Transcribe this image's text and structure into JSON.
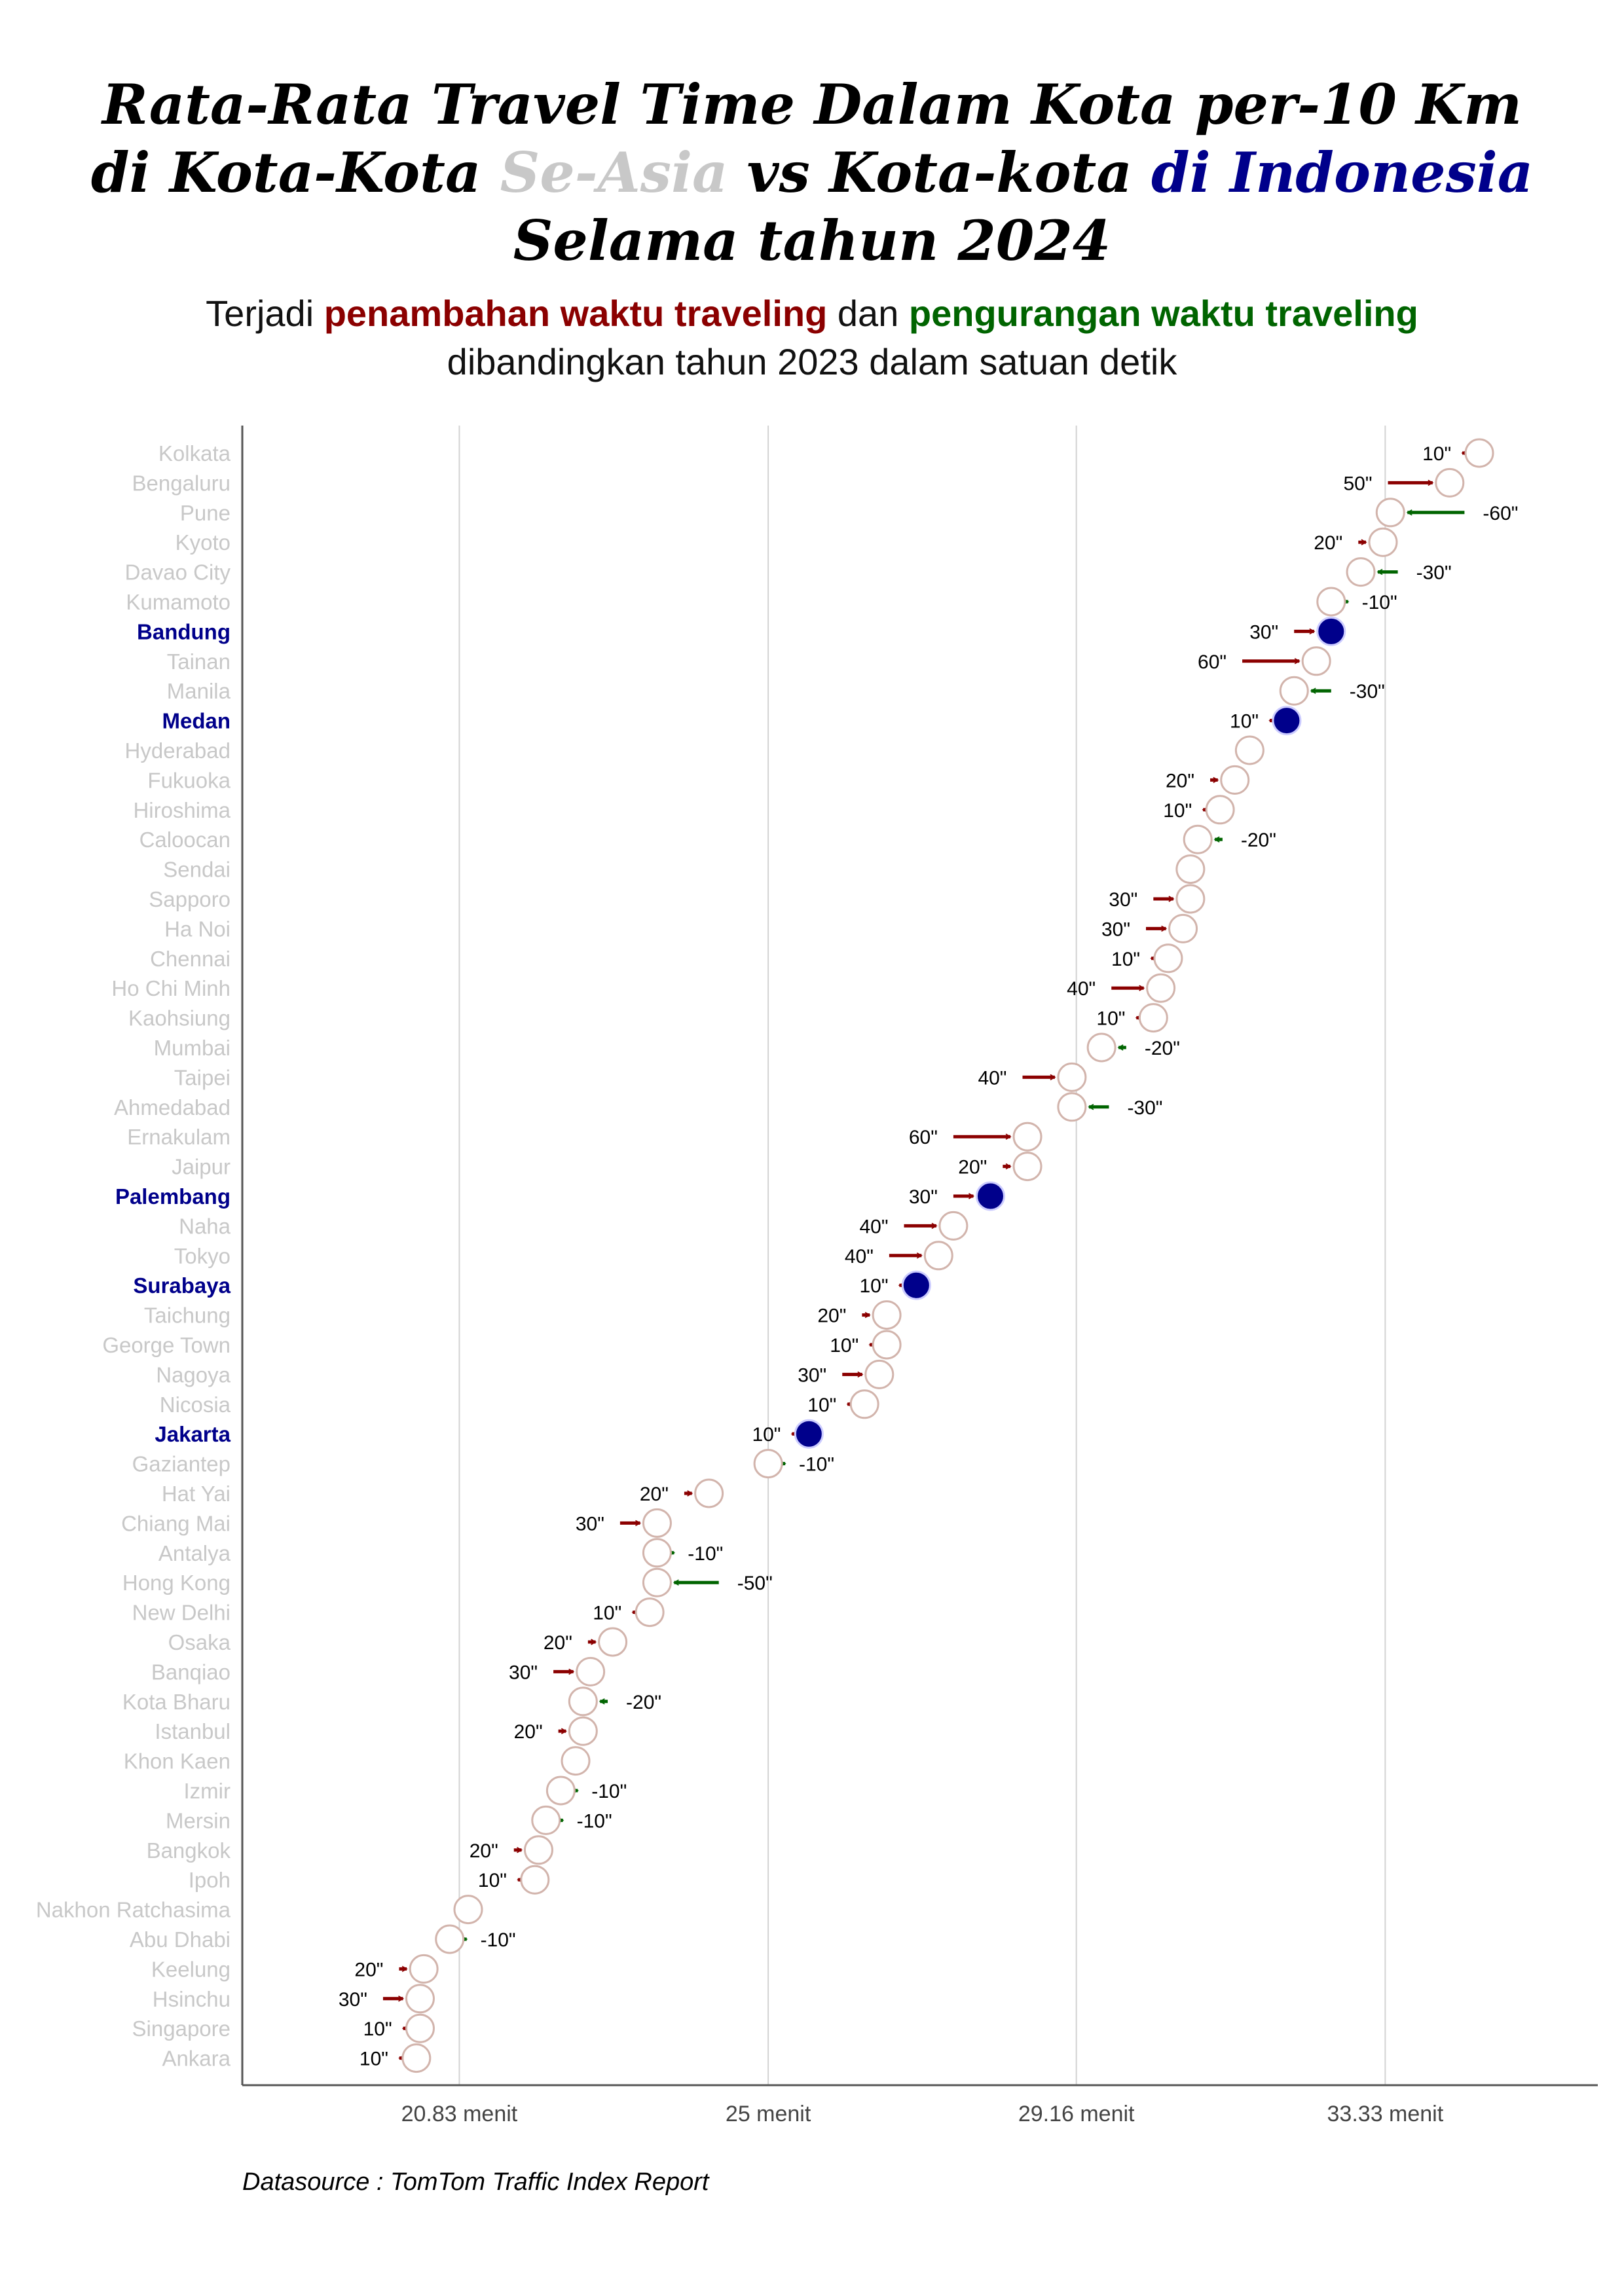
{
  "title": {
    "line1": "Rata-Rata Travel Time Dalam Kota per-10 Km",
    "line2_a": "di Kota-Kota ",
    "line2_b": "Se-Asia",
    "line2_c": " vs Kota-kota ",
    "line2_d": "di Indonesia",
    "line3": "Selama tahun 2024"
  },
  "subtitle": {
    "a": "Terjadi ",
    "b": "penambahan waktu traveling",
    "c": " dan ",
    "d": "pengurangan waktu traveling",
    "line2": "dibandingkan tahun 2023 dalam satuan detik"
  },
  "source": "Datasource : TomTom Traffic Index Report",
  "colors": {
    "increase": "#8b0000",
    "decrease": "#006400",
    "indonesia": "#00008b",
    "asia_label": "#c8c8c8",
    "marker_edge": "#d2b4ac",
    "grid": "#d3d3d3"
  },
  "chart_data": {
    "type": "dumbbell-arrow",
    "x_unit": "minutes",
    "xlim": [
      17.9,
      36.2
    ],
    "x_ticks": [
      {
        "value": 20.83,
        "label": "20.83 menit"
      },
      {
        "value": 25,
        "label": "25 menit"
      },
      {
        "value": 29.16,
        "label": "29.16 menit"
      },
      {
        "value": 33.33,
        "label": "33.33 menit"
      }
    ],
    "grid_x": true,
    "cities": [
      {
        "name": "Kolkata",
        "value_2024": 34.6,
        "change_sec": 10,
        "label": "10\"",
        "indonesia": false
      },
      {
        "name": "Bengaluru",
        "value_2024": 34.2,
        "change_sec": 50,
        "label": "50\"",
        "indonesia": false
      },
      {
        "name": "Pune",
        "value_2024": 33.4,
        "change_sec": -60,
        "label": "-60\"",
        "indonesia": false
      },
      {
        "name": "Kyoto",
        "value_2024": 33.3,
        "change_sec": 20,
        "label": "20\"",
        "indonesia": false
      },
      {
        "name": "Davao City",
        "value_2024": 33.0,
        "change_sec": -30,
        "label": "-30\"",
        "indonesia": false
      },
      {
        "name": "Kumamoto",
        "value_2024": 32.6,
        "change_sec": -10,
        "label": "-10\"",
        "indonesia": false
      },
      {
        "name": "Bandung",
        "value_2024": 32.6,
        "change_sec": 30,
        "label": "30\"",
        "indonesia": true
      },
      {
        "name": "Tainan",
        "value_2024": 32.4,
        "change_sec": 60,
        "label": "60\"",
        "indonesia": false
      },
      {
        "name": "Manila",
        "value_2024": 32.1,
        "change_sec": -30,
        "label": "-30\"",
        "indonesia": false
      },
      {
        "name": "Medan",
        "value_2024": 32.0,
        "change_sec": 10,
        "label": "10\"",
        "indonesia": true
      },
      {
        "name": "Hyderabad",
        "value_2024": 31.5,
        "change_sec": 0,
        "label": "",
        "indonesia": false
      },
      {
        "name": "Fukuoka",
        "value_2024": 31.3,
        "change_sec": 20,
        "label": "20\"",
        "indonesia": false
      },
      {
        "name": "Hiroshima",
        "value_2024": 31.1,
        "change_sec": 10,
        "label": "10\"",
        "indonesia": false
      },
      {
        "name": "Caloocan",
        "value_2024": 30.8,
        "change_sec": -20,
        "label": "-20\"",
        "indonesia": false
      },
      {
        "name": "Sendai",
        "value_2024": 30.7,
        "change_sec": 0,
        "label": "",
        "indonesia": false
      },
      {
        "name": "Sapporo",
        "value_2024": 30.7,
        "change_sec": 30,
        "label": "30\"",
        "indonesia": false
      },
      {
        "name": "Ha Noi",
        "value_2024": 30.6,
        "change_sec": 30,
        "label": "30\"",
        "indonesia": false
      },
      {
        "name": "Chennai",
        "value_2024": 30.4,
        "change_sec": 10,
        "label": "10\"",
        "indonesia": false
      },
      {
        "name": "Ho Chi Minh",
        "value_2024": 30.3,
        "change_sec": 40,
        "label": "40\"",
        "indonesia": false
      },
      {
        "name": "Kaohsiung",
        "value_2024": 30.2,
        "change_sec": 10,
        "label": "10\"",
        "indonesia": false
      },
      {
        "name": "Mumbai",
        "value_2024": 29.5,
        "change_sec": -20,
        "label": "-20\"",
        "indonesia": false
      },
      {
        "name": "Taipei",
        "value_2024": 29.1,
        "change_sec": 40,
        "label": "40\"",
        "indonesia": false
      },
      {
        "name": "Ahmedabad",
        "value_2024": 29.1,
        "change_sec": -30,
        "label": "-30\"",
        "indonesia": false
      },
      {
        "name": "Ernakulam",
        "value_2024": 28.5,
        "change_sec": 60,
        "label": "60\"",
        "indonesia": false
      },
      {
        "name": "Jaipur",
        "value_2024": 28.5,
        "change_sec": 20,
        "label": "20\"",
        "indonesia": false
      },
      {
        "name": "Palembang",
        "value_2024": 28.0,
        "change_sec": 30,
        "label": "30\"",
        "indonesia": true
      },
      {
        "name": "Naha",
        "value_2024": 27.5,
        "change_sec": 40,
        "label": "40\"",
        "indonesia": false
      },
      {
        "name": "Tokyo",
        "value_2024": 27.3,
        "change_sec": 40,
        "label": "40\"",
        "indonesia": false
      },
      {
        "name": "Surabaya",
        "value_2024": 27.0,
        "change_sec": 10,
        "label": "10\"",
        "indonesia": true
      },
      {
        "name": "Taichung",
        "value_2024": 26.6,
        "change_sec": 20,
        "label": "20\"",
        "indonesia": false
      },
      {
        "name": "George Town",
        "value_2024": 26.6,
        "change_sec": 10,
        "label": "10\"",
        "indonesia": false
      },
      {
        "name": "Nagoya",
        "value_2024": 26.5,
        "change_sec": 30,
        "label": "30\"",
        "indonesia": false
      },
      {
        "name": "Nicosia",
        "value_2024": 26.3,
        "change_sec": 10,
        "label": "10\"",
        "indonesia": false
      },
      {
        "name": "Jakarta",
        "value_2024": 25.55,
        "change_sec": 10,
        "label": "10\"",
        "indonesia": true
      },
      {
        "name": "Gaziantep",
        "value_2024": 25.0,
        "change_sec": -10,
        "label": "-10\"",
        "indonesia": false
      },
      {
        "name": "Hat Yai",
        "value_2024": 24.2,
        "change_sec": 20,
        "label": "20\"",
        "indonesia": false
      },
      {
        "name": "Chiang Mai",
        "value_2024": 23.5,
        "change_sec": 30,
        "label": "30\"",
        "indonesia": false
      },
      {
        "name": "Antalya",
        "value_2024": 23.5,
        "change_sec": -10,
        "label": "-10\"",
        "indonesia": false
      },
      {
        "name": "Hong Kong",
        "value_2024": 23.5,
        "change_sec": -50,
        "label": "-50\"",
        "indonesia": false
      },
      {
        "name": "New Delhi",
        "value_2024": 23.4,
        "change_sec": 10,
        "label": "10\"",
        "indonesia": false
      },
      {
        "name": "Osaka",
        "value_2024": 22.9,
        "change_sec": 20,
        "label": "20\"",
        "indonesia": false
      },
      {
        "name": "Banqiao",
        "value_2024": 22.6,
        "change_sec": 30,
        "label": "30\"",
        "indonesia": false
      },
      {
        "name": "Kota Bharu",
        "value_2024": 22.5,
        "change_sec": -20,
        "label": "-20\"",
        "indonesia": false
      },
      {
        "name": "Istanbul",
        "value_2024": 22.5,
        "change_sec": 20,
        "label": "20\"",
        "indonesia": false
      },
      {
        "name": "Khon Kaen",
        "value_2024": 22.4,
        "change_sec": 0,
        "label": "",
        "indonesia": false
      },
      {
        "name": "Izmir",
        "value_2024": 22.2,
        "change_sec": -10,
        "label": "-10\"",
        "indonesia": false
      },
      {
        "name": "Mersin",
        "value_2024": 22.0,
        "change_sec": -10,
        "label": "-10\"",
        "indonesia": false
      },
      {
        "name": "Bangkok",
        "value_2024": 21.9,
        "change_sec": 20,
        "label": "20\"",
        "indonesia": false
      },
      {
        "name": "Ipoh",
        "value_2024": 21.85,
        "change_sec": 10,
        "label": "10\"",
        "indonesia": false
      },
      {
        "name": "Nakhon Ratchasima",
        "value_2024": 20.95,
        "change_sec": 0,
        "label": "",
        "indonesia": false
      },
      {
        "name": "Abu Dhabi",
        "value_2024": 20.7,
        "change_sec": -10,
        "label": "-10\"",
        "indonesia": false
      },
      {
        "name": "Keelung",
        "value_2024": 20.35,
        "change_sec": 20,
        "label": "20\"",
        "indonesia": false
      },
      {
        "name": "Hsinchu",
        "value_2024": 20.3,
        "change_sec": 30,
        "label": "30\"",
        "indonesia": false
      },
      {
        "name": "Singapore",
        "value_2024": 20.3,
        "change_sec": 10,
        "label": "10\"",
        "indonesia": false
      },
      {
        "name": "Ankara",
        "value_2024": 20.25,
        "change_sec": 10,
        "label": "10\"",
        "indonesia": false
      }
    ]
  }
}
